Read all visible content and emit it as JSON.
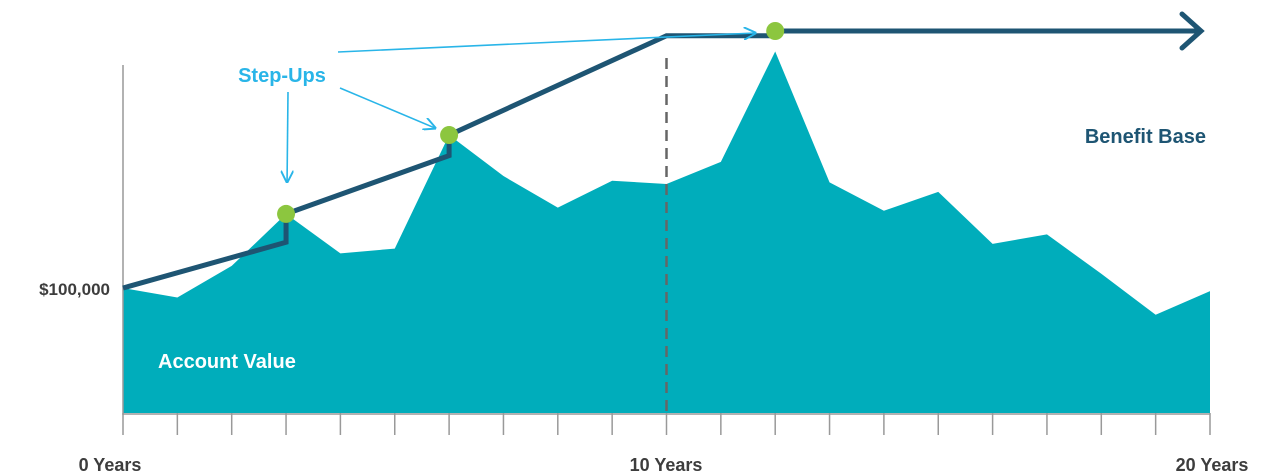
{
  "chart_data": {
    "type": "area",
    "x": [
      0,
      1,
      2,
      3,
      4,
      5,
      6,
      7,
      8,
      9,
      10,
      11,
      12,
      13,
      14,
      15,
      16,
      17,
      18,
      19,
      20
    ],
    "series": [
      {
        "name": "Account Value",
        "values": [
          100000,
          97000,
          107000,
          123500,
          111000,
          112500,
          148500,
          135500,
          125500,
          134000,
          133000,
          140000,
          175000,
          133500,
          124500,
          130500,
          114000,
          117000,
          104500,
          91500,
          99000
        ],
        "color": "#00adbb"
      },
      {
        "name": "Benefit Base",
        "step_ups": [
          3,
          6,
          12
        ],
        "values": [
          100000,
          107750,
          115500,
          123500,
          130250,
          137000,
          148500,
          156500,
          164500,
          172500,
          180000,
          180000,
          181500,
          181500,
          181500,
          181500,
          181500,
          181500,
          181500,
          181500,
          181500
        ],
        "color": "#1e5573"
      }
    ],
    "step_up_points": [
      {
        "x": 3,
        "y": 123500
      },
      {
        "x": 6,
        "y": 148500
      },
      {
        "x": 12,
        "y": 181500
      }
    ],
    "ytick_label": {
      "value": 100000,
      "text": "$100,000"
    },
    "xticks": [
      0,
      1,
      2,
      3,
      4,
      5,
      6,
      7,
      8,
      9,
      10,
      11,
      12,
      13,
      14,
      15,
      16,
      17,
      18,
      19,
      20
    ],
    "xtick_labels": [
      {
        "value": 0,
        "text": "0 Years"
      },
      {
        "value": 10,
        "text": "10 Years"
      },
      {
        "value": 20,
        "text": "20 Years"
      }
    ],
    "vline_x": 10,
    "annotations": {
      "step_ups": "Step-Ups",
      "benefit_base": "Benefit Base",
      "account_value": "Account Value"
    },
    "colors": {
      "area": "#00adbb",
      "benefit_line": "#1e5573",
      "marker": "#8cc63f",
      "annotation": "#29b5e8",
      "axis": "#999999",
      "text": "#3d3d3d",
      "account_label": "#ffffff",
      "dashed": "#666666"
    },
    "ylim": [
      70000,
      187000
    ],
    "xlim": [
      0,
      20
    ]
  }
}
